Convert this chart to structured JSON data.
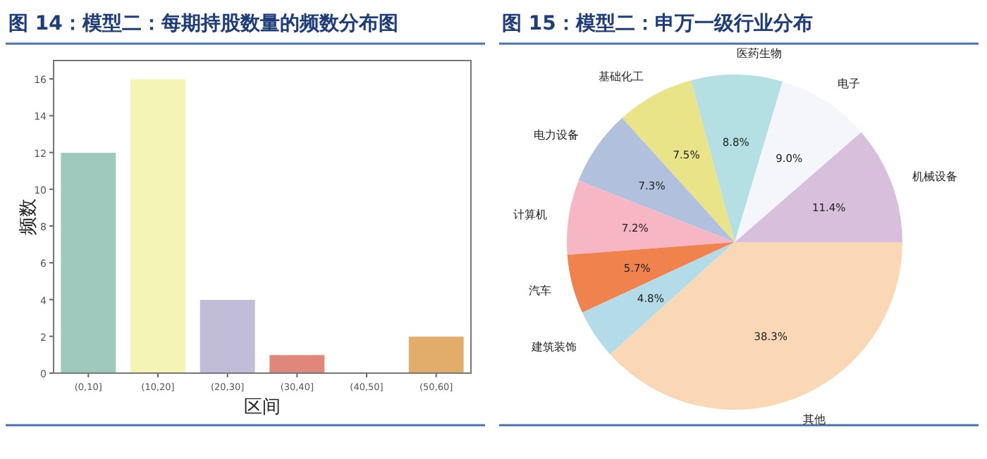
{
  "chart_data": [
    {
      "type": "bar",
      "title": "图 14：模型二：每期持股数量的频数分布图",
      "xlabel": "区间",
      "ylabel": "频数",
      "categories": [
        "(0,10]",
        "(10,20]",
        "(20,30]",
        "(30,40]",
        "(40,50]",
        "(50,60]"
      ],
      "values": [
        12,
        16,
        4,
        1,
        0,
        2
      ],
      "colors": [
        "#9fc9bd",
        "#f4f4b4",
        "#c1bdd8",
        "#e0867b",
        "#cccccc",
        "#e2ad6b"
      ],
      "ylim": [
        0,
        17
      ],
      "yticks": [
        0,
        2,
        4,
        6,
        8,
        10,
        12,
        14,
        16
      ],
      "grid": false
    },
    {
      "type": "pie",
      "title": "图 15：模型二：申万一级行业分布",
      "categories": [
        "机械设备",
        "电子",
        "医药生物",
        "基础化工",
        "电力设备",
        "计算机",
        "汽车",
        "建筑装饰",
        "其他"
      ],
      "values": [
        11.4,
        9.0,
        8.8,
        7.5,
        7.3,
        7.2,
        5.7,
        4.8,
        38.3
      ],
      "value_labels": [
        "11.4%",
        "9.0%",
        "8.8%",
        "7.5%",
        "7.3%",
        "7.2%",
        "5.7%",
        "4.8%",
        "38.3%"
      ],
      "colors": [
        "#d8bfdb",
        "#f5f5fc",
        "#b5e0e3",
        "#e9e487",
        "#b0c0dd",
        "#f6b6c4",
        "#f0824e",
        "#b3dbe8",
        "#fad8b6"
      ]
    }
  ]
}
